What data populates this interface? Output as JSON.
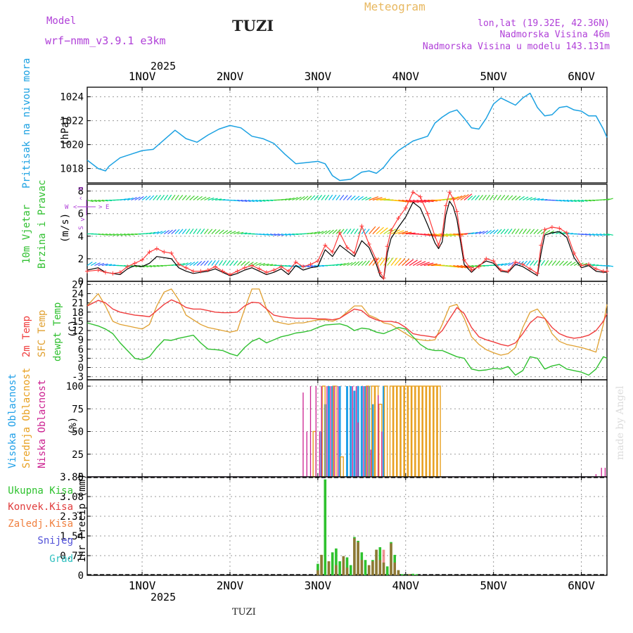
{
  "header": {
    "model_label": "Model",
    "model_name": "wrf−nmm_v3.9.1  e3km",
    "location": "TUZI",
    "meteogram_title": "Meteogram",
    "lonlat": "lon,lat (19.32E, 42.36N)",
    "elevation": "Nadmorska Visina 46m",
    "model_elevation": "Nadmorska Visina u modelu 143.131m",
    "footer_location": "TUZI",
    "watermark": "made by Angel"
  },
  "time_axis": {
    "year": "2025",
    "days": [
      "1NOV",
      "2NOV",
      "3NOV",
      "4NOV",
      "5NOV",
      "6NOV"
    ],
    "day_positions_h": [
      12,
      36,
      60,
      84,
      108,
      132
    ],
    "range_h": [
      -3,
      139
    ]
  },
  "colors": {
    "pressure": "#1ba1e2",
    "wind_speed": "#000000",
    "gust": "#ff3b3b",
    "temp_2m": "#f03c3c",
    "temp_sfc": "#e0a030",
    "dewpoint": "#30c030",
    "cloud_high": "#20a0e8",
    "cloud_mid": "#e8a020",
    "cloud_low": "#cc2090",
    "precip_total": "#2ec22e",
    "precip_conv": "#e03c3c",
    "precip_frozen": "#f08040",
    "precip_snow": "#5050d8",
    "precip_hail": "#30c0c0",
    "title_purple": "#b040d8",
    "title_gold": "#e8b860",
    "location_dark": "#222222"
  },
  "chart_data": [
    {
      "type": "line",
      "id": "pressure",
      "title": "Pritisak na nivou mora",
      "ylabel": "(hPa)",
      "ylim": [
        1016.8,
        1024.8
      ],
      "yticks": [
        1018,
        1020,
        1022,
        1024
      ],
      "grid": true,
      "x": [
        -3,
        0,
        2,
        3,
        6,
        9,
        12,
        15,
        18,
        21,
        24,
        27,
        30,
        33,
        36,
        39,
        42,
        45,
        48,
        51,
        54,
        57,
        60,
        62,
        63,
        64,
        66,
        69,
        72,
        74,
        76,
        78,
        80,
        82,
        84,
        86,
        90,
        92,
        94,
        96,
        98,
        100,
        102,
        104,
        106,
        108,
        110,
        112,
        114,
        116,
        118,
        120,
        122,
        124,
        126,
        128,
        130,
        132,
        134,
        136,
        138,
        139
      ],
      "series": [
        {
          "name": "Pritisak",
          "values": [
            1018.7,
            1018.0,
            1017.8,
            1018.2,
            1018.9,
            1019.2,
            1019.5,
            1019.6,
            1020.4,
            1021.2,
            1020.5,
            1020.2,
            1020.8,
            1021.3,
            1021.6,
            1021.4,
            1020.7,
            1020.5,
            1020.1,
            1019.2,
            1018.4,
            1018.5,
            1018.6,
            1018.4,
            1017.9,
            1017.4,
            1017.0,
            1017.1,
            1017.7,
            1017.8,
            1017.6,
            1018.1,
            1018.9,
            1019.5,
            1019.9,
            1020.3,
            1020.7,
            1021.8,
            1022.3,
            1022.7,
            1022.9,
            1022.2,
            1021.4,
            1021.3,
            1022.2,
            1023.4,
            1023.9,
            1023.6,
            1023.3,
            1023.9,
            1024.3,
            1023.1,
            1022.4,
            1022.5,
            1023.1,
            1023.2,
            1022.9,
            1022.8,
            1022.4,
            1022.4,
            1021.3,
            1020.6
          ]
        }
      ]
    },
    {
      "type": "line",
      "id": "wind",
      "title": "10m Vjetar",
      "subtitle": "Brzina i Pravac",
      "ylabel": "(m/s)",
      "ylim": [
        0,
        8.6
      ],
      "yticks": [
        0,
        2,
        4,
        6,
        8
      ],
      "grid": true,
      "compass_labels": [
        "N",
        "W",
        "E",
        "S"
      ],
      "compass_arrows": [
        "^",
        "<",
        ">",
        "v"
      ],
      "x": [
        -3,
        0,
        2,
        4,
        6,
        8,
        10,
        12,
        14,
        16,
        18,
        20,
        22,
        24,
        26,
        28,
        30,
        32,
        34,
        36,
        38,
        40,
        42,
        44,
        46,
        48,
        50,
        52,
        54,
        56,
        58,
        60,
        62,
        64,
        66,
        68,
        70,
        72,
        74,
        76,
        77,
        78,
        79,
        80,
        82,
        84,
        86,
        88,
        90,
        92,
        93,
        94,
        95,
        96,
        97,
        98,
        99,
        100,
        102,
        104,
        106,
        108,
        110,
        112,
        114,
        116,
        118,
        120,
        121,
        122,
        124,
        126,
        128,
        130,
        132,
        134,
        136,
        138,
        139
      ],
      "series": [
        {
          "name": "Brzina",
          "values": [
            1.0,
            1.2,
            0.8,
            0.7,
            0.6,
            1.1,
            1.4,
            1.3,
            1.6,
            2.2,
            2.1,
            2.0,
            1.2,
            0.9,
            0.7,
            0.8,
            0.9,
            1.1,
            0.8,
            0.5,
            0.7,
            1.0,
            1.2,
            0.9,
            0.6,
            0.8,
            1.1,
            0.6,
            1.4,
            1.0,
            1.2,
            1.3,
            2.8,
            2.2,
            3.2,
            2.7,
            2.2,
            3.6,
            3.0,
            1.5,
            0.5,
            0.2,
            2.5,
            3.8,
            4.8,
            5.7,
            7.0,
            6.5,
            5.0,
            3.4,
            2.9,
            3.5,
            5.9,
            7.1,
            6.6,
            5.5,
            3.5,
            1.5,
            0.8,
            1.4,
            1.8,
            1.6,
            0.9,
            0.8,
            1.5,
            1.3,
            0.9,
            0.5,
            2.5,
            4.1,
            4.3,
            4.4,
            3.9,
            2.1,
            1.2,
            1.4,
            0.9,
            0.8,
            0.8
          ]
        },
        {
          "name": "Udari",
          "values": [
            0.9,
            1.0,
            0.8,
            0.7,
            0.8,
            1.3,
            1.6,
            1.9,
            2.6,
            2.9,
            2.6,
            2.5,
            1.5,
            1.2,
            0.9,
            0.9,
            1.0,
            1.3,
            0.9,
            0.6,
            0.9,
            1.2,
            1.4,
            1.1,
            0.8,
            1.0,
            1.3,
            0.9,
            1.7,
            1.3,
            1.5,
            1.8,
            3.2,
            2.6,
            4.3,
            3.0,
            2.5,
            4.9,
            3.3,
            1.9,
            0.8,
            0.3,
            3.1,
            4.5,
            5.6,
            6.5,
            7.9,
            7.5,
            6.0,
            4.0,
            3.2,
            4.2,
            6.7,
            7.9,
            7.3,
            6.2,
            4.0,
            1.9,
            1.0,
            1.3,
            2.0,
            1.8,
            1.0,
            0.9,
            1.7,
            1.5,
            1.1,
            0.7,
            3.2,
            4.6,
            4.8,
            4.7,
            4.3,
            2.5,
            1.4,
            1.5,
            1.1,
            0.9,
            0.9
          ]
        }
      ],
      "arrow_rows": [
        1.4,
        4.2,
        7.2
      ],
      "arrow_colors": [
        "#7b30e0",
        "#3a60ff",
        "#00b8e8",
        "#00d890",
        "#40d030",
        "#b0e020",
        "#ffc000",
        "#ff6000",
        "#ff1830"
      ]
    },
    {
      "type": "line",
      "id": "temperature",
      "titles": [
        "2m Temp",
        "SFC Temp",
        "dewpt Temp"
      ],
      "ylabel": "(C)",
      "ylim": [
        -4,
        28
      ],
      "yticks": [
        -3,
        0,
        3,
        6,
        9,
        12,
        15,
        18,
        21,
        24,
        27
      ],
      "grid": true,
      "x": [
        -3,
        0,
        2,
        4,
        6,
        8,
        10,
        12,
        14,
        16,
        18,
        20,
        22,
        24,
        26,
        28,
        30,
        32,
        34,
        36,
        38,
        40,
        42,
        44,
        46,
        48,
        50,
        52,
        54,
        56,
        58,
        60,
        62,
        64,
        66,
        68,
        70,
        72,
        74,
        76,
        78,
        80,
        82,
        84,
        86,
        88,
        90,
        92,
        94,
        96,
        98,
        100,
        102,
        104,
        106,
        108,
        110,
        112,
        114,
        116,
        118,
        120,
        122,
        124,
        126,
        128,
        130,
        132,
        134,
        136,
        138,
        139
      ],
      "series": [
        {
          "name": "2m Temp",
          "values": [
            20.0,
            21.8,
            21.0,
            19.0,
            18.0,
            17.5,
            17.0,
            16.8,
            16.5,
            18.5,
            20.5,
            22.0,
            21.0,
            19.5,
            19.0,
            19.0,
            18.5,
            18.0,
            17.8,
            17.8,
            18.0,
            20.0,
            21.2,
            21.0,
            19.0,
            17.0,
            16.5,
            16.2,
            16.0,
            16.0,
            16.0,
            15.8,
            15.8,
            15.5,
            16.0,
            17.5,
            19.0,
            18.5,
            16.5,
            15.5,
            15.0,
            15.0,
            14.5,
            13.0,
            11.0,
            10.5,
            10.2,
            9.8,
            12.0,
            15.8,
            19.5,
            17.5,
            13.0,
            10.0,
            9.0,
            8.3,
            7.5,
            7.0,
            8.0,
            11.0,
            14.5,
            16.5,
            16.0,
            13.0,
            11.0,
            10.0,
            9.5,
            9.8,
            10.5,
            12.0,
            15.0,
            17.5
          ]
        },
        {
          "name": "SFC Temp",
          "values": [
            20.0,
            24.0,
            20.0,
            15.0,
            14.0,
            13.5,
            13.0,
            12.5,
            14.0,
            20.0,
            24.5,
            25.5,
            22.0,
            17.0,
            15.5,
            14.0,
            13.0,
            12.5,
            12.0,
            11.5,
            12.0,
            19.0,
            25.5,
            25.5,
            19.0,
            15.0,
            14.5,
            14.0,
            14.5,
            14.5,
            15.0,
            15.5,
            15.5,
            15.0,
            16.0,
            18.0,
            20.0,
            20.0,
            17.0,
            16.0,
            14.5,
            14.0,
            12.5,
            11.0,
            9.5,
            9.0,
            8.7,
            9.0,
            14.0,
            19.8,
            20.5,
            16.0,
            10.0,
            7.5,
            5.8,
            4.8,
            4.0,
            4.5,
            6.5,
            13.0,
            18.0,
            19.0,
            16.0,
            11.0,
            8.5,
            7.5,
            7.0,
            6.5,
            5.8,
            5.0,
            14.0,
            20.5
          ]
        },
        {
          "name": "dewpt Temp",
          "values": [
            14.5,
            13.5,
            12.5,
            11.0,
            8.0,
            5.5,
            3.0,
            2.5,
            3.5,
            6.5,
            9.0,
            8.8,
            9.5,
            10.0,
            10.5,
            8.0,
            6.0,
            5.8,
            5.5,
            4.5,
            3.8,
            6.5,
            8.5,
            9.5,
            8.0,
            9.0,
            10.0,
            10.5,
            11.2,
            11.5,
            12.0,
            13.0,
            13.8,
            14.0,
            14.2,
            13.5,
            12.0,
            12.8,
            12.5,
            11.5,
            11.0,
            12.0,
            13.0,
            12.5,
            10.0,
            7.5,
            6.0,
            5.5,
            5.5,
            4.5,
            3.5,
            3.0,
            -0.5,
            -1.0,
            -0.8,
            -0.3,
            -0.5,
            0.3,
            -2.5,
            -1.0,
            3.5,
            3.0,
            -0.5,
            0.5,
            1.0,
            -0.5,
            -1.0,
            -1.5,
            -2.5,
            -0.5,
            3.5,
            3.0
          ]
        }
      ]
    },
    {
      "type": "bar",
      "id": "clouds",
      "titles": [
        "Visoka Oblacnost",
        "Srednja Oblacnost",
        "Niska Oblacnost"
      ],
      "ylabel": "(%)",
      "ylim": [
        0,
        107
      ],
      "yticks": [
        0,
        25,
        50,
        75,
        100
      ],
      "grid": true,
      "series": [
        {
          "name": "Visoka Oblacnost",
          "x": [
            61,
            62,
            63,
            64,
            66,
            68,
            69,
            70,
            71,
            72,
            73,
            74,
            75,
            78
          ],
          "values": [
            50,
            80,
            100,
            100,
            100,
            100,
            100,
            95,
            100,
            100,
            100,
            100,
            80,
            100
          ]
        },
        {
          "name": "Srednja Oblacnost",
          "x": [
            59,
            61.5,
            64.5,
            66.5,
            73.5,
            75,
            76,
            77,
            78.5,
            80,
            81,
            82,
            83,
            84,
            85,
            86,
            87,
            88,
            89,
            90,
            91,
            92,
            93
          ],
          "values": [
            50,
            100,
            100,
            22,
            100,
            100,
            100,
            80,
            100,
            100,
            100,
            100,
            100,
            100,
            100,
            100,
            100,
            100,
            100,
            100,
            100,
            100,
            100
          ]
        },
        {
          "name": "Niska Oblacnost",
          "x": [
            56,
            57,
            58,
            59.5,
            60.5,
            61,
            62.5,
            63.5,
            64.5,
            65.5,
            69.5,
            70.5,
            71,
            72.5,
            73.5,
            74.5,
            76.5,
            77.5,
            136,
            137.5,
            138.5
          ],
          "values": [
            93,
            50,
            100,
            100,
            50,
            100,
            100,
            100,
            100,
            100,
            100,
            100,
            60,
            100,
            100,
            30,
            90,
            50,
            3,
            10,
            10
          ]
        }
      ]
    },
    {
      "type": "bar",
      "id": "precip",
      "titles": [
        "Ukupna Kisa",
        "Konvek.Kisa",
        "Zaledj.Kisa",
        "Snijeg",
        "Grad"
      ],
      "ylabel": "1hr Precip (mm)",
      "ylim": [
        0,
        3.85
      ],
      "yticks": [
        0,
        0.77,
        1.54,
        2.31,
        3.08,
        3.85
      ],
      "ytick_labels": [
        "0",
        "0.77",
        "1.54",
        "2.31",
        "3.08",
        "3.85"
      ],
      "grid": true,
      "series": [
        {
          "name": "Ukupna Kisa",
          "x": [
            60,
            61,
            62,
            63,
            64,
            65,
            66,
            67,
            68,
            69,
            70,
            71,
            72,
            73,
            74,
            75,
            76,
            77,
            78,
            79,
            80,
            81,
            82,
            83,
            84,
            85,
            86,
            87
          ],
          "values": [
            0.45,
            0.8,
            3.75,
            0.55,
            0.9,
            1.05,
            0.55,
            0.75,
            0.7,
            0.4,
            1.5,
            1.35,
            0.9,
            0.6,
            0.4,
            0.6,
            1.0,
            1.1,
            0.5,
            0.35,
            1.3,
            0.8,
            0.2,
            0.05,
            0.02,
            0.05,
            0.06,
            0.04
          ]
        },
        {
          "name": "Konvek.Kisa",
          "x": [
            60,
            61,
            63,
            65,
            67,
            68,
            70,
            71,
            72,
            74,
            75,
            76,
            77,
            78,
            80,
            81,
            82,
            85
          ],
          "values": [
            0.2,
            0.8,
            0.55,
            0.4,
            0.75,
            0.3,
            1.45,
            1.3,
            0.6,
            0.4,
            0.55,
            1.0,
            0.6,
            1.0,
            1.25,
            0.5,
            0.2,
            0.05
          ]
        },
        {
          "name": "Zaledj.Kisa",
          "x": [],
          "values": []
        },
        {
          "name": "Snijeg",
          "x": [],
          "values": []
        },
        {
          "name": "Grad",
          "x": [],
          "values": []
        }
      ]
    }
  ]
}
